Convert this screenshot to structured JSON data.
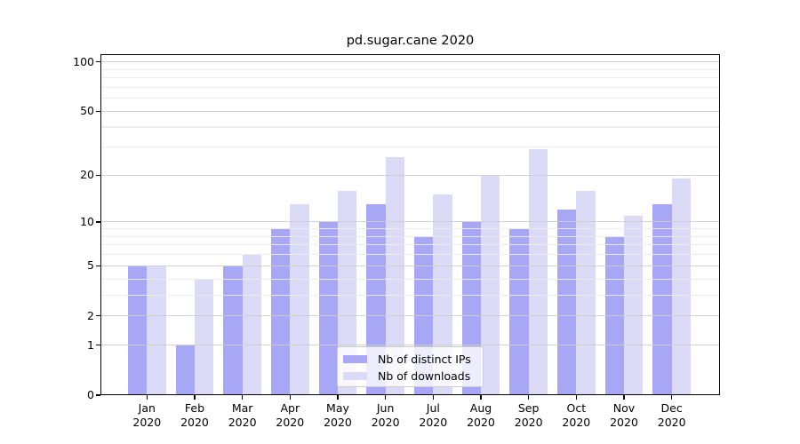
{
  "title": "pd.sugar.cane 2020",
  "chart_data": {
    "type": "bar",
    "title": "pd.sugar.cane 2020",
    "x_months": [
      "Jan",
      "Feb",
      "Mar",
      "Apr",
      "May",
      "Jun",
      "Jul",
      "Aug",
      "Sep",
      "Oct",
      "Nov",
      "Dec"
    ],
    "x_year": "2020",
    "categories": [
      "Jan 2020",
      "Feb 2020",
      "Mar 2020",
      "Apr 2020",
      "May 2020",
      "Jun 2020",
      "Jul 2020",
      "Aug 2020",
      "Sep 2020",
      "Oct 2020",
      "Nov 2020",
      "Dec 2020"
    ],
    "series": [
      {
        "name": "Nb of distinct IPs",
        "color": "#a7a7f5",
        "values": [
          5,
          1,
          5,
          9,
          10,
          13,
          8,
          10,
          9,
          12,
          8,
          13
        ]
      },
      {
        "name": "Nb of downloads",
        "color": "#dbdbf8",
        "values": [
          5,
          4,
          6,
          13,
          16,
          26,
          15,
          20,
          29,
          16,
          11,
          19
        ]
      }
    ],
    "yscale": "log1p",
    "ylim": [
      0,
      100
    ],
    "y_major_ticks": [
      0,
      1,
      2,
      5,
      10,
      20,
      50,
      100
    ],
    "y_minor_ticks": [
      3,
      4,
      6,
      7,
      8,
      9,
      30,
      40,
      60,
      70,
      80,
      90
    ],
    "grid": true,
    "legend_position": "lower center",
    "colors": {
      "axis": "#000000",
      "grid_major": "#cdcdcd",
      "grid_minor": "#ececec",
      "legend_border": "#cccccc",
      "background": "#ffffff"
    }
  }
}
